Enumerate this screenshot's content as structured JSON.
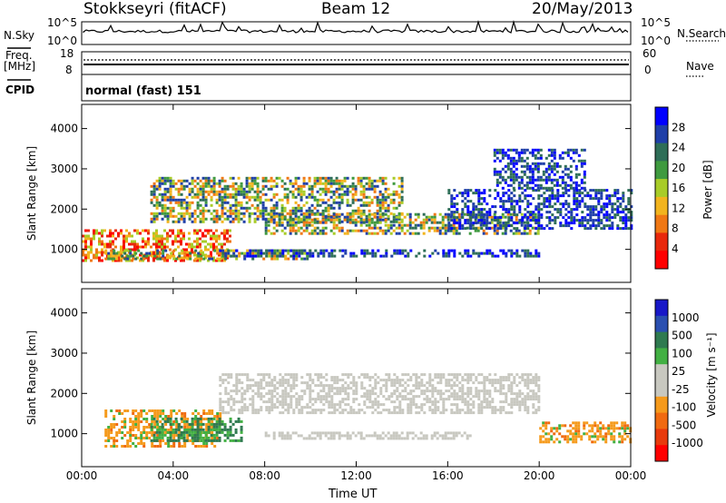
{
  "header": {
    "station": "Stokkseyri (fitACF)",
    "beam": "Beam 12",
    "date": "20/May/2013"
  },
  "aux": {
    "nsky_label": "N.Sky",
    "nsearch_label": "N.Search",
    "noise_ticks": [
      "10^5",
      "10^0"
    ],
    "freq_label_1": "Freq.",
    "freq_label_2": "[MHz]",
    "freq_ticks": [
      "18",
      "8"
    ],
    "nave_label": "Nave",
    "nave_ticks": [
      "60",
      "0"
    ],
    "cpid_label": "CPID",
    "cpid_value": "normal (fast) 151"
  },
  "colors": {
    "power_scale": [
      "#0000ff",
      "#1f3fa8",
      "#2e6e57",
      "#3f9a3f",
      "#a8cc28",
      "#f2b41e",
      "#f07814",
      "#e8280c",
      "#ff0000"
    ],
    "velocity_scale": [
      "#1818c8",
      "#2a4fb0",
      "#2f7a50",
      "#42b043",
      "#c8c8c0",
      "#c8c8c0",
      "#f59a1c",
      "#f06a10",
      "#e83a0c",
      "#ff0000"
    ]
  },
  "chart_data": [
    {
      "type": "heatmap",
      "name": "power",
      "ylabel": "Slant Range [km]",
      "xlabel": "",
      "ylim": [
        180,
        4600
      ],
      "xlim": [
        0,
        24
      ],
      "y_ticks": [
        "1000",
        "2000",
        "3000",
        "4000"
      ],
      "x_ticks": [
        "00:00",
        "04:00",
        "08:00",
        "12:00",
        "16:00",
        "20:00",
        "00:00"
      ],
      "colorbar": {
        "title": "Power [dB]",
        "ticks": [
          "28",
          "24",
          "20",
          "16",
          "12",
          "8",
          "4"
        ]
      },
      "echo_bands": [
        {
          "t": [
            0.0,
            6.5
          ],
          "range": [
            700,
            1500
          ],
          "level": "high"
        },
        {
          "t": [
            1.0,
            10.0
          ],
          "range": [
            750,
            1000
          ],
          "level": "mid"
        },
        {
          "t": [
            3.0,
            14.0
          ],
          "range": [
            1700,
            2800
          ],
          "level": "mid"
        },
        {
          "t": [
            8.0,
            20.0
          ],
          "range": [
            1400,
            1900
          ],
          "level": "mid"
        },
        {
          "t": [
            6.0,
            20.0
          ],
          "range": [
            800,
            1000
          ],
          "level": "low"
        },
        {
          "t": [
            16.0,
            24.0
          ],
          "range": [
            1500,
            2500
          ],
          "level": "low"
        },
        {
          "t": [
            18.0,
            22.0
          ],
          "range": [
            2500,
            3500
          ],
          "level": "low"
        }
      ]
    },
    {
      "type": "heatmap",
      "name": "velocity",
      "ylabel": "Slant Range [km]",
      "xlabel": "Time UT",
      "ylim": [
        180,
        4600
      ],
      "xlim": [
        0,
        24
      ],
      "y_ticks": [
        "1000",
        "2000",
        "3000",
        "4000"
      ],
      "x_ticks": [
        "00:00",
        "04:00",
        "08:00",
        "12:00",
        "16:00",
        "20:00",
        "00:00"
      ],
      "colorbar": {
        "title": "Velocity [m s⁻¹]",
        "ticks": [
          "1000",
          "500",
          "100",
          "25",
          "-25",
          "-100",
          "-500",
          "-1000"
        ]
      },
      "echo_bands": [
        {
          "t": [
            1.0,
            6.0
          ],
          "range": [
            700,
            1600
          ],
          "level": "negative"
        },
        {
          "t": [
            3.0,
            7.0
          ],
          "range": [
            800,
            1400
          ],
          "level": "positive"
        },
        {
          "t": [
            6.0,
            20.0
          ],
          "range": [
            1500,
            2500
          ],
          "level": "ground"
        },
        {
          "t": [
            8.0,
            17.0
          ],
          "range": [
            850,
            1050
          ],
          "level": "ground"
        },
        {
          "t": [
            20.0,
            24.0
          ],
          "range": [
            800,
            1300
          ],
          "level": "negative"
        }
      ]
    }
  ]
}
